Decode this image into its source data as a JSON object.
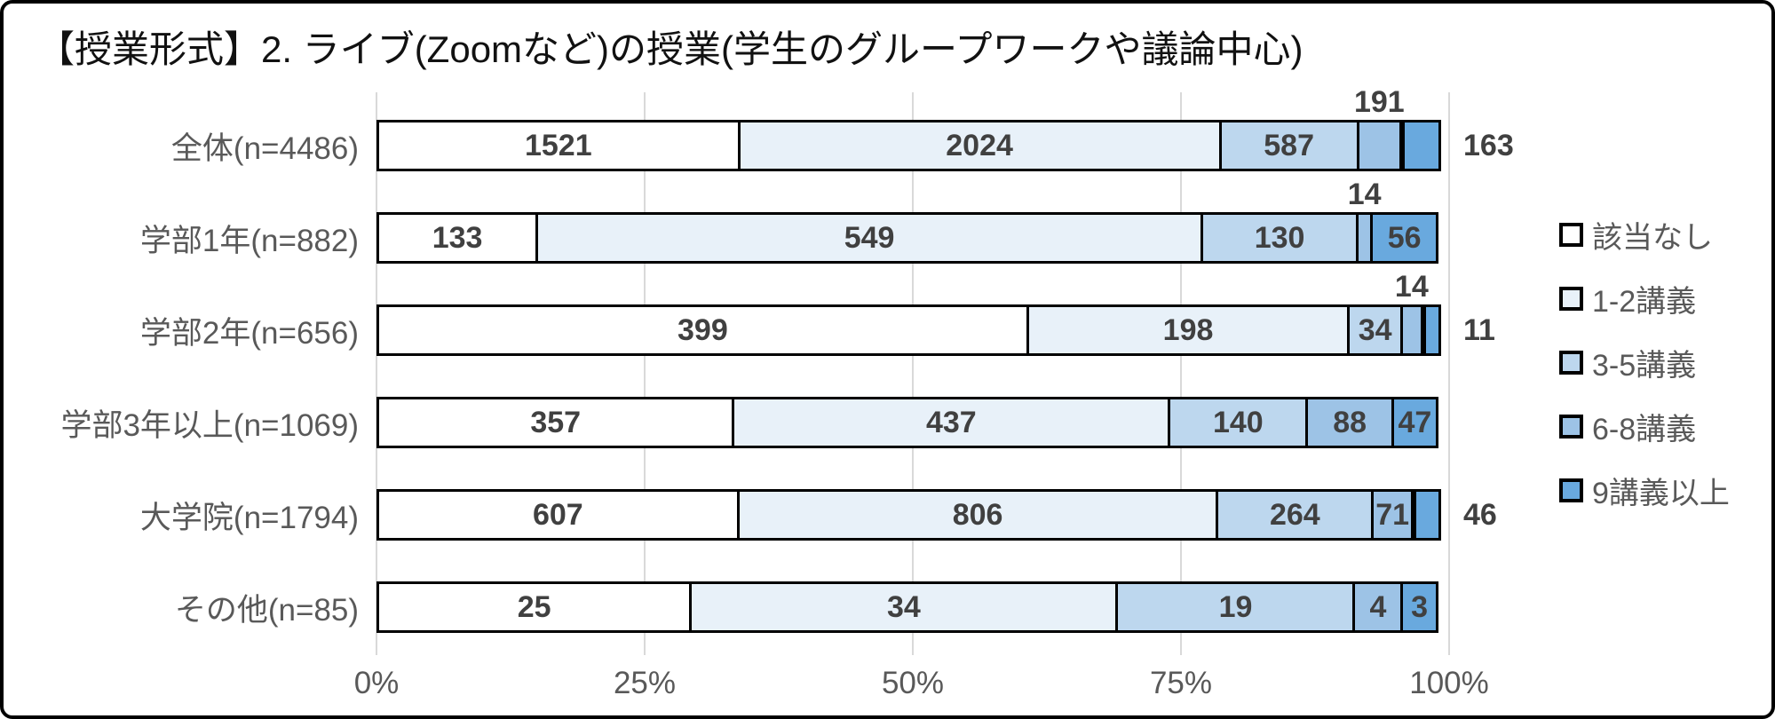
{
  "title": "【授業形式】2. ライブ(Zoomなど)の授業(学生のグループワークや議論中心)",
  "chart_data": {
    "type": "bar",
    "stacked": true,
    "orientation": "horizontal",
    "title": "【授業形式】2. ライブ(Zoomなど)の授業(学生のグループワークや議論中心)",
    "x_axis": {
      "ticks": [
        "0%",
        "25%",
        "50%",
        "75%",
        "100%"
      ],
      "range_percent": [
        0,
        100
      ]
    },
    "grid": true,
    "legend_position": "right",
    "legend": [
      {
        "label": "該当なし",
        "color": "#FFFFFF"
      },
      {
        "label": "1-2講義",
        "color": "#E8F1F9"
      },
      {
        "label": "3-5講義",
        "color": "#BDD7EE"
      },
      {
        "label": "6-8講義",
        "color": "#9DC3E6"
      },
      {
        "label": "9講義以上",
        "color": "#69A9DE"
      }
    ],
    "categories": [
      "全体(n=4486)",
      "学部1年(n=882)",
      "学部2年(n=656)",
      "学部3年以上(n=1069)",
      "大学院(n=1794)",
      "その他(n=85)"
    ],
    "rows": [
      {
        "category": "全体(n=4486)",
        "values": [
          1521,
          2024,
          587,
          191,
          163
        ],
        "label_positions": [
          "inside",
          "inside",
          "inside",
          "above",
          "right"
        ]
      },
      {
        "category": "学部1年(n=882)",
        "values": [
          133,
          549,
          130,
          14,
          56
        ],
        "label_positions": [
          "inside",
          "inside",
          "inside",
          "above",
          "inside"
        ]
      },
      {
        "category": "学部2年(n=656)",
        "values": [
          399,
          198,
          34,
          14,
          11
        ],
        "label_positions": [
          "inside",
          "inside",
          "inside",
          "above",
          "right"
        ]
      },
      {
        "category": "学部3年以上(n=1069)",
        "values": [
          357,
          437,
          140,
          88,
          47
        ],
        "label_positions": [
          "inside",
          "inside",
          "inside",
          "inside",
          "inside"
        ]
      },
      {
        "category": "大学院(n=1794)",
        "values": [
          607,
          806,
          264,
          71,
          46
        ],
        "label_positions": [
          "inside",
          "inside",
          "inside",
          "inside",
          "right"
        ]
      },
      {
        "category": "その他(n=85)",
        "values": [
          25,
          34,
          19,
          4,
          3
        ],
        "label_positions": [
          "inside",
          "inside",
          "inside",
          "inside",
          "inside"
        ]
      }
    ],
    "styles": {
      "value_label_color": "#404040",
      "category_label_color": "#595959",
      "axis_label_color": "#595959",
      "legend_label_color": "#595959",
      "grid_color": "#D9D9D9",
      "segment_border_color": "#000000",
      "frame_border_color": "#000000",
      "background": "#FFFFFF"
    }
  }
}
